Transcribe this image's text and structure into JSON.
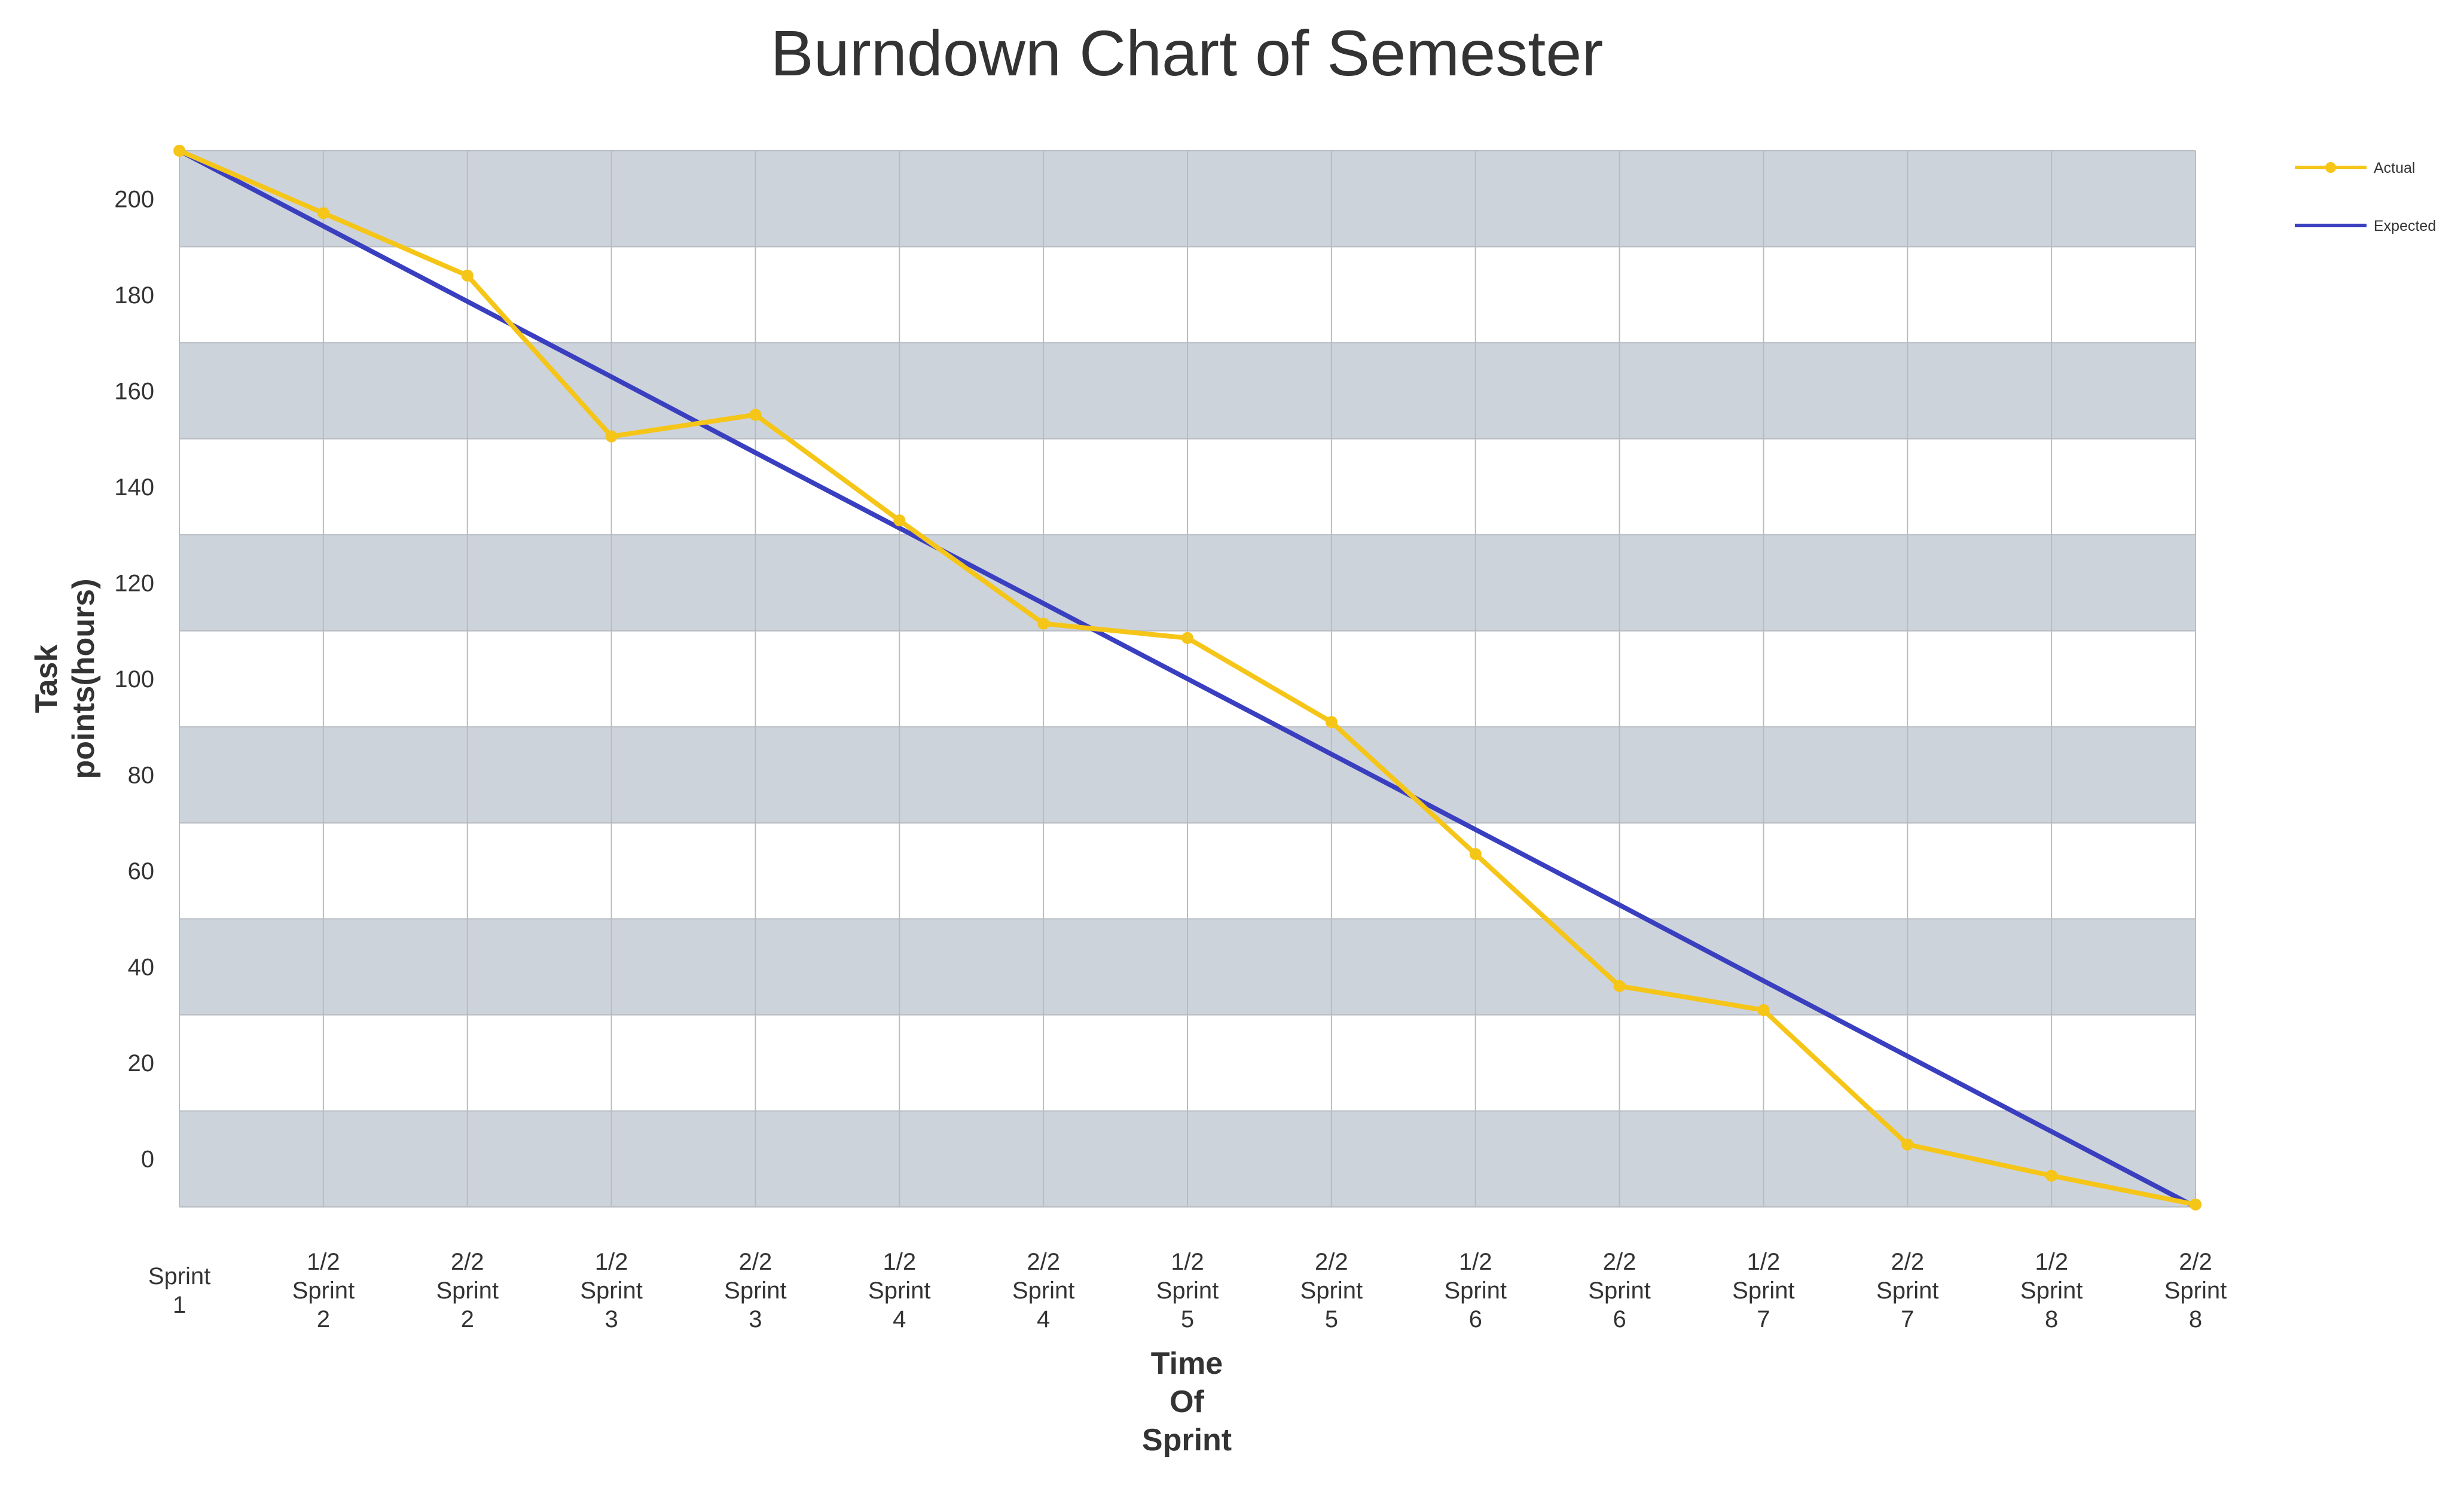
{
  "chart_data": {
    "type": "line",
    "title": "Burndown Chart of Semester",
    "xlabel": [
      "Time",
      "Of",
      "Sprint"
    ],
    "ylabel": [
      "Task",
      "points(hours)"
    ],
    "categories": [
      [
        "Sprint",
        "1"
      ],
      [
        "1/2",
        "Sprint",
        "2"
      ],
      [
        "2/2",
        "Sprint",
        "2"
      ],
      [
        "1/2",
        "Sprint",
        "3"
      ],
      [
        "2/2",
        "Sprint",
        "3"
      ],
      [
        "1/2",
        "Sprint",
        "4"
      ],
      [
        "2/2",
        "Sprint",
        "4"
      ],
      [
        "1/2",
        "Sprint",
        "5"
      ],
      [
        "2/2",
        "Sprint",
        "5"
      ],
      [
        "1/2",
        "Sprint",
        "6"
      ],
      [
        "2/2",
        "Sprint",
        "6"
      ],
      [
        "1/2",
        "Sprint",
        "7"
      ],
      [
        "2/2",
        "Sprint",
        "7"
      ],
      [
        "1/2",
        "Sprint",
        "8"
      ],
      [
        "2/2",
        "Sprint",
        "8"
      ]
    ],
    "yticks": [
      0,
      20,
      40,
      60,
      80,
      100,
      120,
      140,
      160,
      180,
      200
    ],
    "ylim": [
      -10,
      210
    ],
    "grid": true,
    "legend_position": "top-right",
    "series": [
      {
        "name": "Actual",
        "color": "#f5c518",
        "marker": true,
        "values": [
          210,
          197,
          184,
          150.5,
          155,
          133,
          111.5,
          108.5,
          91,
          63.5,
          36,
          31,
          3,
          -3.5,
          -9.5
        ]
      },
      {
        "name": "Expected",
        "color": "#3a3fbf",
        "marker": false,
        "values": [
          210,
          194.3,
          178.6,
          162.9,
          147.1,
          131.4,
          115.7,
          100,
          84.3,
          68.6,
          52.9,
          37.1,
          21.4,
          5.7,
          -10
        ]
      }
    ],
    "band_colors": [
      "#cdd3db",
      "#ffffff"
    ],
    "gridline_color": "#b8bcc2"
  }
}
